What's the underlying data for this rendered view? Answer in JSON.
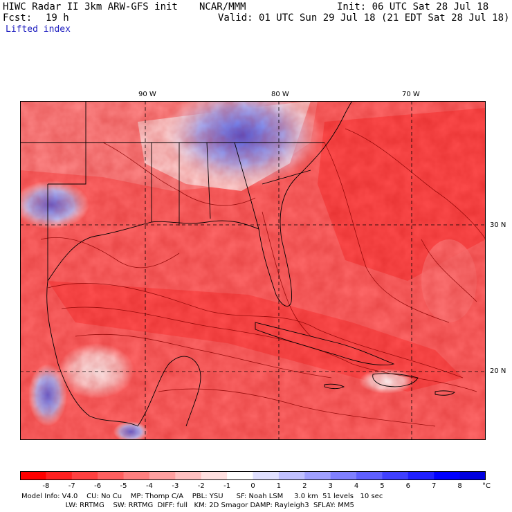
{
  "header": {
    "model": "HIWC Radar II 3km ARW-GFS init",
    "org": "NCAR/MMM",
    "init": "Init: 06 UTC Sat 28 Jul 18",
    "fcst_label": "Fcst:",
    "fcst_value": "19 h",
    "valid": "Valid: 01 UTC Sun 29 Jul 18 (21 EDT Sat 28 Jul 18)",
    "field": "Lifted index"
  },
  "axes": {
    "lon_labels": [
      "90 W",
      "80 W",
      "70 W"
    ],
    "lat_labels": [
      "30 N",
      "20 N"
    ]
  },
  "colorbar": {
    "ticks": [
      "-8",
      "-7",
      "-6",
      "-5",
      "-4",
      "-3",
      "-2",
      "-1",
      "0",
      "1",
      "2",
      "3",
      "4",
      "5",
      "6",
      "7",
      "8"
    ],
    "unit": "°C",
    "colors": [
      "#ff0000",
      "#ff2020",
      "#ff4040",
      "#ff6060",
      "#ff8080",
      "#ffa0a0",
      "#ffc0c0",
      "#ffe0e0",
      "#ffffff",
      "#e0e0ff",
      "#c0c0ff",
      "#a0a0ff",
      "#8080ff",
      "#6060ff",
      "#4040ff",
      "#2020ff",
      "#0000ff",
      "#0000e0"
    ]
  },
  "footer": {
    "line1": "Model Info: V4.0    CU: No Cu    MP: Thomp C/A    PBL: YSU      SF: Noah LSM     3.0 km  51 levels   10 sec",
    "line2": "                    LW: RRTMG    SW: RRTMG  DIFF: full   KM: 2D Smagor DAMP: Rayleigh3  SFLAY: MM5"
  },
  "map": {
    "legend_colors": {
      "unstable": "#ff4a4a",
      "neutral": "#ffffff",
      "stable": "#5a70f0"
    }
  }
}
